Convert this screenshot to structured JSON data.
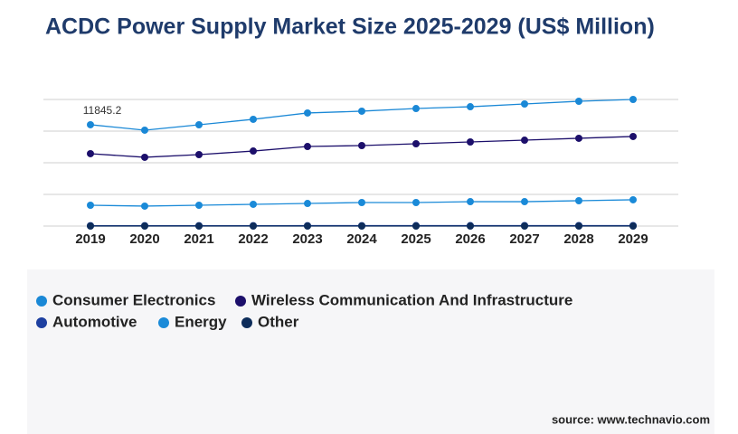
{
  "chart_data": {
    "type": "line",
    "title": "ACDC Power Supply Market Size 2025-2029 (US$ Million)",
    "categories": [
      "2019",
      "2020",
      "2021",
      "2022",
      "2023",
      "2024",
      "2025",
      "2026",
      "2027",
      "2028",
      "2029"
    ],
    "series": [
      {
        "name": "Consumer Electronics",
        "color": "#1a88d6",
        "values": [
          11845.2,
          11210,
          11840,
          12480,
          13220,
          13430,
          13740,
          13950,
          14270,
          14590,
          14800
        ]
      },
      {
        "name": "Wireless Communication And Infrastructure",
        "color": "#1c0f6b",
        "values": [
          8460,
          8040,
          8350,
          8770,
          9300,
          9410,
          9620,
          9830,
          10040,
          10260,
          10470
        ]
      },
      {
        "name": "Automotive",
        "color": "#1d3fa0",
        "values": [
          40,
          38,
          40,
          42,
          45,
          46,
          48,
          50,
          52,
          54,
          56
        ]
      },
      {
        "name": "Energy",
        "color": "#1a8ad8",
        "values": [
          2430,
          2330,
          2430,
          2540,
          2640,
          2750,
          2750,
          2850,
          2850,
          2960,
          3070
        ]
      },
      {
        "name": "Other",
        "color": "#0d2c5a",
        "values": [
          0,
          0,
          0,
          0,
          0,
          0,
          0,
          0,
          0,
          0,
          0
        ]
      }
    ],
    "ylim": [
      0,
      14800
    ],
    "yticks": [
      0,
      3700,
      7400,
      11100,
      14800
    ],
    "grid": true,
    "source": "source: www.technavio.com"
  }
}
